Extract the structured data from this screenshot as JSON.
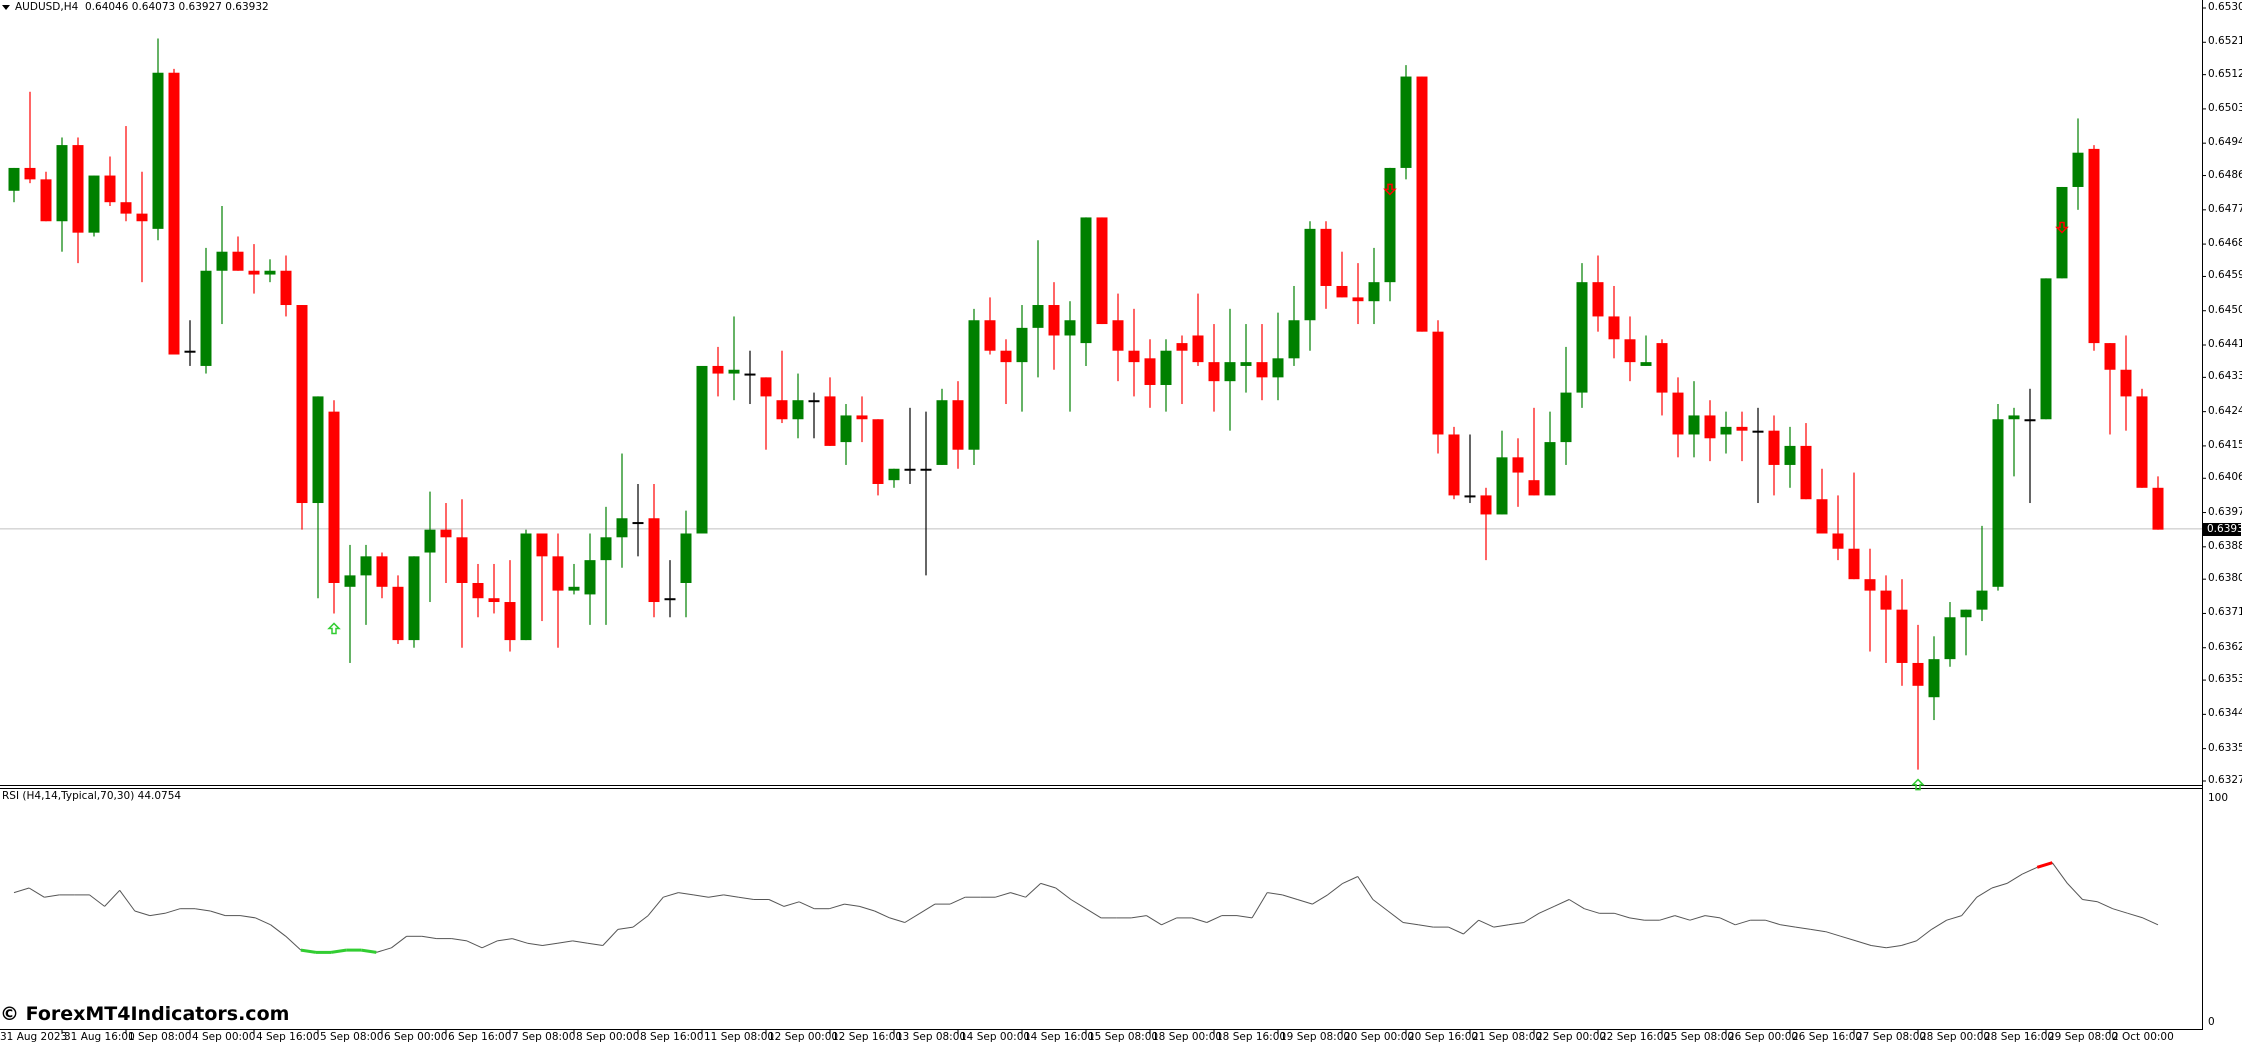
{
  "header": {
    "symbol": "AUDUSD,H4",
    "ohlc": "0.64046 0.64073 0.63927 0.63932"
  },
  "rsi_header": "RSI (H4,14,Typical,70,30) 44.0754",
  "watermark": "© ForexMT4Indicators.com",
  "current_price_label": "0.63932",
  "colors": {
    "bull": "#008000",
    "bear": "#ff0000",
    "doji": "#000000",
    "rsi_line": "#555555",
    "rsi_overbought": "#ff0000",
    "rsi_oversold": "#32cd32",
    "bid_line": "#c0c0c0"
  },
  "chart_data": [
    {
      "type": "candlestick",
      "title": "AUDUSD,H4",
      "ylim": [
        0.6327,
        0.653
      ],
      "y_ticks": [
        "0.65300",
        "0.65210",
        "0.65125",
        "0.65035",
        "0.64945",
        "0.64860",
        "0.64770",
        "0.64680",
        "0.64595",
        "0.64505",
        "0.64415",
        "0.64330",
        "0.64240",
        "0.64150",
        "0.64065",
        "0.63975",
        "0.63885",
        "0.63800",
        "0.63710",
        "0.63620",
        "0.63535",
        "0.63445",
        "0.63355",
        "0.63270"
      ],
      "x_ticks": [
        "31 Aug 2023",
        "31 Aug 16:00",
        "1 Sep 08:00",
        "4 Sep 00:00",
        "4 Sep 16:00",
        "5 Sep 08:00",
        "6 Sep 00:00",
        "6 Sep 16:00",
        "7 Sep 08:00",
        "8 Sep 00:00",
        "8 Sep 16:00",
        "11 Sep 08:00",
        "12 Sep 00:00",
        "12 Sep 16:00",
        "13 Sep 08:00",
        "14 Sep 00:00",
        "14 Sep 16:00",
        "15 Sep 08:00",
        "18 Sep 00:00",
        "18 Sep 16:00",
        "19 Sep 08:00",
        "20 Sep 00:00",
        "20 Sep 16:00",
        "21 Sep 08:00",
        "22 Sep 00:00",
        "22 Sep 16:00",
        "25 Sep 08:00",
        "26 Sep 00:00",
        "26 Sep 16:00",
        "27 Sep 08:00",
        "28 Sep 00:00",
        "28 Sep 16:00",
        "29 Sep 08:00",
        "2 Oct 00:00"
      ],
      "last_price": 0.63932,
      "candles_ohlc": [
        [
          0.6482,
          0.6488,
          0.6479,
          0.6488
        ],
        [
          0.6488,
          0.6508,
          0.6484,
          0.6485
        ],
        [
          0.6485,
          0.6487,
          0.6474,
          0.6474
        ],
        [
          0.6474,
          0.6496,
          0.6466,
          0.6494
        ],
        [
          0.6494,
          0.6496,
          0.6463,
          0.6471
        ],
        [
          0.6471,
          0.6486,
          0.647,
          0.6486
        ],
        [
          0.6486,
          0.6491,
          0.6478,
          0.6479
        ],
        [
          0.6479,
          0.6499,
          0.6474,
          0.6476
        ],
        [
          0.6476,
          0.6487,
          0.6458,
          0.6474
        ],
        [
          0.6472,
          0.6522,
          0.6469,
          0.6513
        ],
        [
          0.6513,
          0.6514,
          0.6439,
          0.6439
        ],
        [
          0.644,
          0.6448,
          0.6436,
          0.644
        ],
        [
          0.6436,
          0.6467,
          0.6434,
          0.6461
        ],
        [
          0.6461,
          0.6478,
          0.6447,
          0.6466
        ],
        [
          0.6466,
          0.647,
          0.6462,
          0.6461
        ],
        [
          0.6461,
          0.6468,
          0.6455,
          0.646
        ],
        [
          0.646,
          0.6464,
          0.6458,
          0.6461
        ],
        [
          0.6461,
          0.6465,
          0.6449,
          0.6452
        ],
        [
          0.6452,
          0.6428,
          0.6393,
          0.64
        ],
        [
          0.64,
          0.6427,
          0.6375,
          0.6428
        ],
        [
          0.6424,
          0.6427,
          0.6371,
          0.6379
        ],
        [
          0.6378,
          0.6389,
          0.6358,
          0.6381
        ],
        [
          0.6381,
          0.6389,
          0.6368,
          0.6386
        ],
        [
          0.6386,
          0.6387,
          0.6375,
          0.6378
        ],
        [
          0.6378,
          0.6381,
          0.6363,
          0.6364
        ],
        [
          0.6364,
          0.6386,
          0.6362,
          0.6386
        ],
        [
          0.6387,
          0.6403,
          0.6374,
          0.6393
        ],
        [
          0.6393,
          0.64,
          0.6379,
          0.6391
        ],
        [
          0.6391,
          0.6401,
          0.6362,
          0.6379
        ],
        [
          0.6379,
          0.6384,
          0.637,
          0.6375
        ],
        [
          0.6375,
          0.6384,
          0.6371,
          0.6374
        ],
        [
          0.6374,
          0.6385,
          0.6361,
          0.6364
        ],
        [
          0.6364,
          0.6393,
          0.6365,
          0.6392
        ],
        [
          0.6392,
          0.6391,
          0.6369,
          0.6386
        ],
        [
          0.6386,
          0.6392,
          0.6362,
          0.6377
        ],
        [
          0.6377,
          0.6384,
          0.6376,
          0.6378
        ],
        [
          0.6376,
          0.6392,
          0.6368,
          0.6385
        ],
        [
          0.6385,
          0.6399,
          0.6368,
          0.6391
        ],
        [
          0.6391,
          0.6413,
          0.6383,
          0.6396
        ],
        [
          0.6395,
          0.6405,
          0.6386,
          0.6395
        ],
        [
          0.6396,
          0.6405,
          0.637,
          0.6374
        ],
        [
          0.6375,
          0.6385,
          0.637,
          0.6375
        ],
        [
          0.6379,
          0.6398,
          0.637,
          0.6392
        ],
        [
          0.6392,
          0.6436,
          0.6392,
          0.6436
        ],
        [
          0.6436,
          0.6441,
          0.6428,
          0.6434
        ],
        [
          0.6434,
          0.6449,
          0.6427,
          0.6435
        ],
        [
          0.6434,
          0.644,
          0.6426,
          0.6434
        ],
        [
          0.6433,
          0.6433,
          0.6414,
          0.6428
        ],
        [
          0.6427,
          0.644,
          0.6421,
          0.6422
        ],
        [
          0.6422,
          0.6434,
          0.6417,
          0.6427
        ],
        [
          0.6427,
          0.6429,
          0.6417,
          0.6427
        ],
        [
          0.6428,
          0.6433,
          0.6417,
          0.6415
        ],
        [
          0.6416,
          0.6426,
          0.641,
          0.6423
        ],
        [
          0.6423,
          0.6428,
          0.6416,
          0.6422
        ],
        [
          0.6422,
          0.6422,
          0.6402,
          0.6405
        ],
        [
          0.6406,
          0.6409,
          0.6404,
          0.6409
        ],
        [
          0.6409,
          0.6425,
          0.6405,
          0.6409
        ],
        [
          0.6409,
          0.6424,
          0.6381,
          0.6409
        ],
        [
          0.641,
          0.643,
          0.6412,
          0.6427
        ],
        [
          0.6427,
          0.6432,
          0.6409,
          0.6414
        ],
        [
          0.6414,
          0.6451,
          0.641,
          0.6448
        ],
        [
          0.6448,
          0.6454,
          0.6439,
          0.644
        ],
        [
          0.644,
          0.6443,
          0.6426,
          0.6437
        ],
        [
          0.6437,
          0.6452,
          0.6424,
          0.6446
        ],
        [
          0.6446,
          0.6469,
          0.6433,
          0.6452
        ],
        [
          0.6452,
          0.6458,
          0.6435,
          0.6444
        ],
        [
          0.6444,
          0.6453,
          0.6424,
          0.6448
        ],
        [
          0.6442,
          0.6475,
          0.6436,
          0.6475
        ],
        [
          0.6475,
          0.6474,
          0.6447,
          0.6447
        ],
        [
          0.6448,
          0.6455,
          0.6432,
          0.644
        ],
        [
          0.644,
          0.6451,
          0.6428,
          0.6437
        ],
        [
          0.6438,
          0.6443,
          0.6425,
          0.6431
        ],
        [
          0.6431,
          0.6443,
          0.6424,
          0.644
        ],
        [
          0.6442,
          0.6444,
          0.6426,
          0.644
        ],
        [
          0.6444,
          0.6455,
          0.6436,
          0.6437
        ],
        [
          0.6437,
          0.6447,
          0.6424,
          0.6432
        ],
        [
          0.6432,
          0.6451,
          0.6419,
          0.6437
        ],
        [
          0.6436,
          0.6447,
          0.6429,
          0.6437
        ],
        [
          0.6437,
          0.6447,
          0.6427,
          0.6433
        ],
        [
          0.6433,
          0.645,
          0.6427,
          0.6438
        ],
        [
          0.6438,
          0.6457,
          0.6436,
          0.6448
        ],
        [
          0.6448,
          0.6474,
          0.644,
          0.6472
        ],
        [
          0.6472,
          0.6474,
          0.6451,
          0.6457
        ],
        [
          0.6457,
          0.6466,
          0.6455,
          0.6454
        ],
        [
          0.6454,
          0.6463,
          0.6447,
          0.6453
        ],
        [
          0.6453,
          0.6467,
          0.6447,
          0.6458
        ],
        [
          0.6458,
          0.648,
          0.6453,
          0.6488
        ],
        [
          0.6488,
          0.6515,
          0.6485,
          0.6512
        ],
        [
          0.6512,
          0.6512,
          0.6445,
          0.6445
        ],
        [
          0.6445,
          0.6448,
          0.6413,
          0.6418
        ],
        [
          0.6418,
          0.642,
          0.6401,
          0.6402
        ],
        [
          0.6402,
          0.6418,
          0.64,
          0.6402
        ],
        [
          0.6402,
          0.6404,
          0.6385,
          0.6397
        ],
        [
          0.6397,
          0.6419,
          0.6399,
          0.6412
        ],
        [
          0.6412,
          0.6417,
          0.6399,
          0.6408
        ],
        [
          0.6406,
          0.6425,
          0.6402,
          0.6402
        ],
        [
          0.6402,
          0.6424,
          0.6402,
          0.6416
        ],
        [
          0.6416,
          0.6441,
          0.641,
          0.6429
        ],
        [
          0.6429,
          0.6463,
          0.6425,
          0.6458
        ],
        [
          0.6458,
          0.6465,
          0.6445,
          0.6449
        ],
        [
          0.6449,
          0.6457,
          0.6438,
          0.6443
        ],
        [
          0.6443,
          0.6449,
          0.6432,
          0.6437
        ],
        [
          0.6436,
          0.6444,
          0.6437,
          0.6437
        ],
        [
          0.6442,
          0.6443,
          0.6423,
          0.6429
        ],
        [
          0.6429,
          0.6433,
          0.6412,
          0.6418
        ],
        [
          0.6418,
          0.6432,
          0.6412,
          0.6423
        ],
        [
          0.6423,
          0.6427,
          0.6411,
          0.6417
        ],
        [
          0.6418,
          0.6424,
          0.6413,
          0.642
        ],
        [
          0.642,
          0.6424,
          0.6411,
          0.6419
        ],
        [
          0.6419,
          0.6425,
          0.64,
          0.6419
        ],
        [
          0.6419,
          0.6423,
          0.6402,
          0.641
        ],
        [
          0.641,
          0.642,
          0.6404,
          0.6415
        ],
        [
          0.6415,
          0.6421,
          0.6405,
          0.6401
        ],
        [
          0.6401,
          0.6409,
          0.6392,
          0.6392
        ],
        [
          0.6392,
          0.6402,
          0.6385,
          0.6388
        ],
        [
          0.6388,
          0.6408,
          0.638,
          0.638
        ],
        [
          0.638,
          0.6388,
          0.6361,
          0.6377
        ],
        [
          0.6377,
          0.6381,
          0.6358,
          0.6372
        ],
        [
          0.6372,
          0.638,
          0.6352,
          0.6358
        ],
        [
          0.6358,
          0.6368,
          0.633,
          0.6352
        ],
        [
          0.6349,
          0.6365,
          0.6343,
          0.6359
        ],
        [
          0.6359,
          0.6374,
          0.6357,
          0.637
        ],
        [
          0.637,
          0.6372,
          0.636,
          0.6372
        ],
        [
          0.6372,
          0.6394,
          0.6369,
          0.6377
        ],
        [
          0.6378,
          0.6426,
          0.6377,
          0.6422
        ],
        [
          0.6422,
          0.6425,
          0.6407,
          0.6423
        ],
        [
          0.6422,
          0.643,
          0.64,
          0.6422
        ],
        [
          0.6422,
          0.6458,
          0.6422,
          0.6459
        ],
        [
          0.6459,
          0.647,
          0.6459,
          0.6483
        ],
        [
          0.6483,
          0.6501,
          0.6477,
          0.6492
        ],
        [
          0.6493,
          0.6494,
          0.644,
          0.6442
        ],
        [
          0.6442,
          0.6438,
          0.6418,
          0.6435
        ],
        [
          0.6435,
          0.6444,
          0.6419,
          0.6428
        ],
        [
          0.6428,
          0.643,
          0.641,
          0.6404
        ],
        [
          0.6404,
          0.6407,
          0.6393,
          0.6393
        ]
      ],
      "signal_arrows": [
        {
          "type": "up",
          "candle_index": 20,
          "color": "#32cd32"
        },
        {
          "type": "down",
          "candle_index": 86,
          "color": "#ff0000"
        },
        {
          "type": "up",
          "candle_index": 119,
          "color": "#32cd32"
        },
        {
          "type": "down",
          "candle_index": 128,
          "color": "#ff0000"
        }
      ]
    },
    {
      "type": "line",
      "title": "RSI (H4,14,Typical,70,30) 44.0754",
      "ylim": [
        0,
        100
      ],
      "y_ticks": [
        "100",
        "0"
      ],
      "levels": {
        "overbought": 70,
        "oversold": 30
      },
      "last_value": 44.0754,
      "values": [
        58,
        60,
        56,
        57,
        57,
        57,
        52,
        59,
        50,
        48,
        49,
        51,
        51,
        50,
        48,
        48,
        47,
        44,
        39,
        33,
        32,
        32,
        33,
        33,
        32,
        34,
        39,
        39,
        38,
        38,
        37,
        34,
        37,
        38,
        36,
        35,
        36,
        37,
        36,
        35,
        42,
        43,
        48,
        56,
        58,
        57,
        56,
        57,
        56,
        55,
        55,
        52,
        54,
        51,
        51,
        53,
        52,
        50,
        47,
        45,
        49,
        53,
        53,
        56,
        56,
        56,
        58,
        56,
        62,
        60,
        55,
        51,
        47,
        47,
        47,
        48,
        44,
        47,
        47,
        45,
        48,
        48,
        47,
        58,
        57,
        55,
        53,
        57,
        62,
        65,
        55,
        50,
        45,
        44,
        43,
        43,
        40,
        46,
        43,
        44,
        45,
        49,
        52,
        55,
        51,
        49,
        49,
        47,
        46,
        46,
        48,
        46,
        48,
        47,
        44,
        46,
        46,
        44,
        43,
        42,
        41,
        39,
        37,
        35,
        34,
        35,
        37,
        42,
        46,
        48,
        56,
        60,
        62,
        66,
        69,
        71,
        62,
        55,
        54,
        51,
        49,
        47,
        44
      ]
    }
  ]
}
